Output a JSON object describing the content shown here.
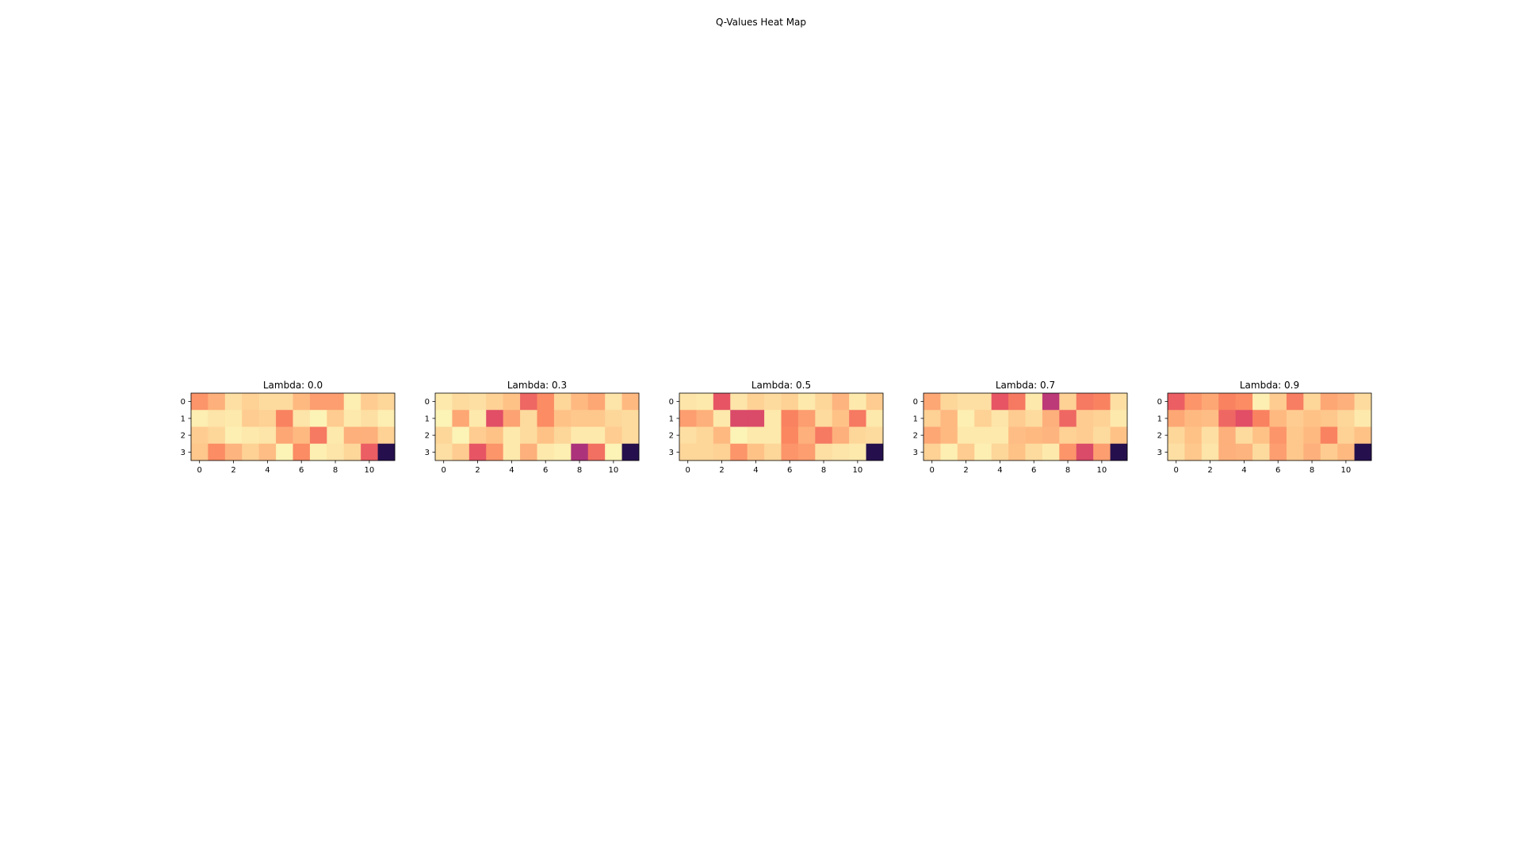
{
  "chart_data": {
    "title": "Q-Values Heat Map",
    "type": "heatmap",
    "colormap": "magma",
    "value_range": [
      0,
      1
    ],
    "rows": [
      0,
      1,
      2,
      3
    ],
    "cols": [
      0,
      1,
      2,
      3,
      4,
      5,
      6,
      7,
      8,
      9,
      10,
      11
    ],
    "x_ticks": [
      0,
      2,
      4,
      6,
      8,
      10
    ],
    "y_ticks": [
      0,
      1,
      2,
      3
    ],
    "grid": false,
    "panels": [
      {
        "title": "Lambda: 0.0",
        "values": [
          [
            0.78,
            0.84,
            0.94,
            0.91,
            0.93,
            0.93,
            0.86,
            0.8,
            0.8,
            0.97,
            0.9,
            0.92
          ],
          [
            0.97,
            0.95,
            0.96,
            0.9,
            0.91,
            0.74,
            0.95,
            0.98,
            0.9,
            0.96,
            0.94,
            0.97
          ],
          [
            0.9,
            0.92,
            0.97,
            0.96,
            0.95,
            0.82,
            0.86,
            0.72,
            0.96,
            0.84,
            0.84,
            0.91
          ],
          [
            0.89,
            0.76,
            0.85,
            0.91,
            0.87,
            0.98,
            0.76,
            0.97,
            0.95,
            0.92,
            0.66,
            0.15
          ]
        ]
      },
      {
        "title": "Lambda: 0.3",
        "values": [
          [
            0.96,
            0.93,
            0.94,
            0.91,
            0.88,
            0.68,
            0.76,
            0.92,
            0.86,
            0.82,
            0.95,
            0.86
          ],
          [
            0.98,
            0.82,
            0.96,
            0.62,
            0.81,
            0.93,
            0.76,
            0.88,
            0.89,
            0.89,
            0.92,
            0.93
          ],
          [
            0.92,
            0.98,
            0.9,
            0.88,
            0.96,
            0.93,
            0.88,
            0.92,
            0.96,
            0.96,
            0.9,
            0.93
          ],
          [
            0.94,
            0.9,
            0.64,
            0.78,
            0.96,
            0.84,
            0.96,
            0.97,
            0.48,
            0.7,
            0.98,
            0.15
          ]
        ]
      },
      {
        "title": "Lambda: 0.5",
        "values": [
          [
            0.95,
            0.96,
            0.64,
            0.95,
            0.91,
            0.93,
            0.91,
            0.96,
            0.92,
            0.85,
            0.96,
            0.9
          ],
          [
            0.8,
            0.84,
            0.96,
            0.6,
            0.6,
            0.96,
            0.74,
            0.8,
            0.93,
            0.88,
            0.72,
            0.96
          ],
          [
            0.94,
            0.92,
            0.86,
            0.98,
            0.96,
            0.96,
            0.75,
            0.84,
            0.72,
            0.84,
            0.92,
            0.93
          ],
          [
            0.92,
            0.92,
            0.91,
            0.78,
            0.88,
            0.92,
            0.78,
            0.8,
            0.94,
            0.95,
            0.96,
            0.15
          ]
        ]
      },
      {
        "title": "Lambda: 0.7",
        "values": [
          [
            0.82,
            0.92,
            0.94,
            0.94,
            0.64,
            0.72,
            0.96,
            0.52,
            0.91,
            0.72,
            0.74,
            0.94
          ],
          [
            0.91,
            0.86,
            0.97,
            0.91,
            0.95,
            0.9,
            0.93,
            0.84,
            0.68,
            0.9,
            0.91,
            0.96
          ],
          [
            0.82,
            0.86,
            0.96,
            0.96,
            0.96,
            0.87,
            0.86,
            0.85,
            0.91,
            0.9,
            0.93,
            0.88
          ],
          [
            0.91,
            0.97,
            0.9,
            0.97,
            0.92,
            0.88,
            0.93,
            0.96,
            0.78,
            0.6,
            0.8,
            0.15
          ]
        ]
      },
      {
        "title": "Lambda: 0.9",
        "values": [
          [
            0.66,
            0.78,
            0.82,
            0.74,
            0.76,
            0.97,
            0.9,
            0.73,
            0.92,
            0.82,
            0.84,
            0.93
          ],
          [
            0.82,
            0.86,
            0.87,
            0.68,
            0.62,
            0.74,
            0.86,
            0.9,
            0.88,
            0.89,
            0.92,
            0.96
          ],
          [
            0.92,
            0.88,
            0.94,
            0.84,
            0.93,
            0.88,
            0.78,
            0.89,
            0.86,
            0.74,
            0.91,
            0.88
          ],
          [
            0.94,
            0.89,
            0.95,
            0.84,
            0.85,
            0.93,
            0.8,
            0.89,
            0.84,
            0.9,
            0.86,
            0.15
          ]
        ]
      }
    ]
  }
}
